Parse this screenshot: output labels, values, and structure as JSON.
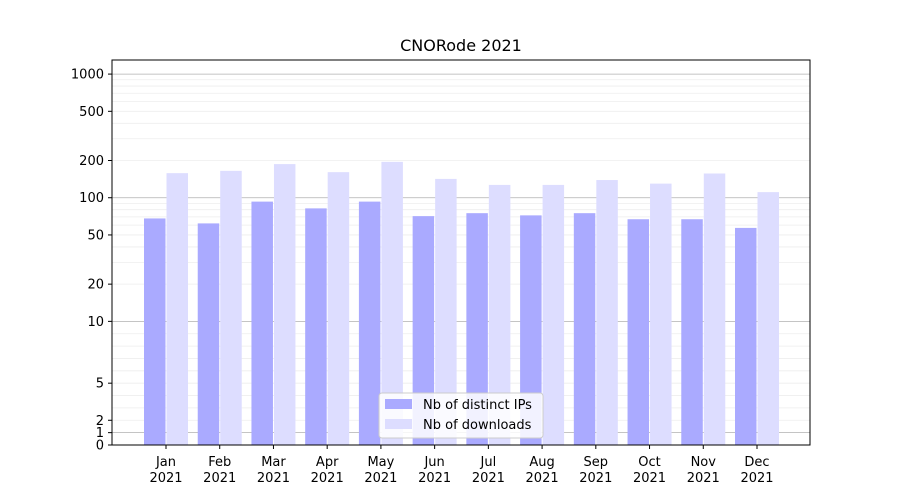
{
  "chart_data": {
    "type": "bar",
    "title": "CNORode 2021",
    "xlabel": "",
    "ylabel": "",
    "yscale": "symlog",
    "ylim": [
      0,
      1300
    ],
    "yticks": [
      0,
      1,
      2,
      5,
      10,
      20,
      50,
      100,
      200,
      500,
      1000
    ],
    "grid": true,
    "legend_position": "bottom-center",
    "categories": [
      "Jan\n2021",
      "Feb\n2021",
      "Mar\n2021",
      "Apr\n2021",
      "May\n2021",
      "Jun\n2021",
      "Jul\n2021",
      "Aug\n2021",
      "Sep\n2021",
      "Oct\n2021",
      "Nov\n2021",
      "Dec\n2021"
    ],
    "series": [
      {
        "name": "Nb of distinct IPs",
        "color": "#aaaaff",
        "values": [
          68,
          62,
          93,
          82,
          93,
          71,
          75,
          72,
          75,
          67,
          67,
          57
        ]
      },
      {
        "name": "Nb of downloads",
        "color": "#ddddff",
        "values": [
          158,
          165,
          187,
          161,
          195,
          142,
          127,
          127,
          139,
          130,
          157,
          111
        ]
      }
    ]
  }
}
